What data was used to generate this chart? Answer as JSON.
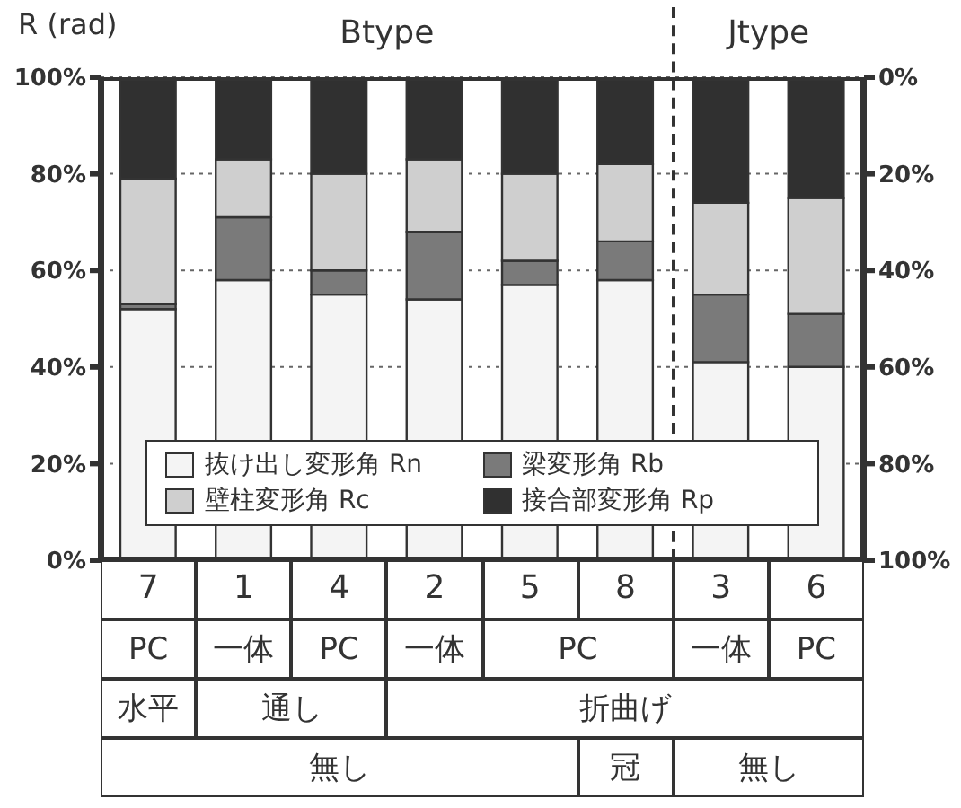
{
  "chart_data": {
    "type": "bar",
    "stacked": true,
    "ylabel": "R (rad)",
    "categories": [
      "7",
      "1",
      "4",
      "2",
      "5",
      "8",
      "3",
      "6"
    ],
    "series": [
      {
        "name": "抜け出し変形角 Rn",
        "color": "#f4f4f4",
        "values": [
          52,
          58,
          55,
          54,
          57,
          58,
          41,
          40
        ]
      },
      {
        "name": "梁変形角 Rb",
        "color": "#7a7a7a",
        "values": [
          1,
          13,
          5,
          14,
          5,
          8,
          14,
          11
        ]
      },
      {
        "name": "壁柱変形角 Rc",
        "color": "#cfcfcf",
        "values": [
          26,
          12,
          20,
          15,
          18,
          16,
          19,
          24
        ]
      },
      {
        "name": "接合部変形角 Rp",
        "color": "#303030",
        "values": [
          21,
          17,
          20,
          17,
          20,
          18,
          26,
          25
        ]
      }
    ],
    "ylim": [
      0,
      100
    ],
    "yticks": [
      {
        "value": 0,
        "label": "0%"
      },
      {
        "value": 20,
        "label": "20%"
      },
      {
        "value": 40,
        "label": "40%"
      },
      {
        "value": 60,
        "label": "60%"
      },
      {
        "value": 80,
        "label": "80%"
      },
      {
        "value": 100,
        "label": "100%"
      }
    ],
    "y2lim": [
      100,
      0
    ],
    "y2ticks": [
      {
        "value": 0,
        "label": "0%"
      },
      {
        "value": 20,
        "label": "20%"
      },
      {
        "value": 40,
        "label": "40%"
      },
      {
        "value": 60,
        "label": "60%"
      },
      {
        "value": 80,
        "label": "80%"
      },
      {
        "value": 100,
        "label": "100%"
      }
    ],
    "grid": "y",
    "legend": "bottom",
    "ref_lines": [
      {
        "axis": "x",
        "value": "8",
        "line_style": "dashed",
        "color": "#333333"
      }
    ],
    "annotations": [
      "Btype",
      "Jtype",
      "PC",
      "一体",
      "PC",
      "一体",
      "PC",
      "一体",
      "PC",
      "水平",
      "通し",
      "折曲げ",
      "無し",
      "冠",
      "無し"
    ]
  }
}
